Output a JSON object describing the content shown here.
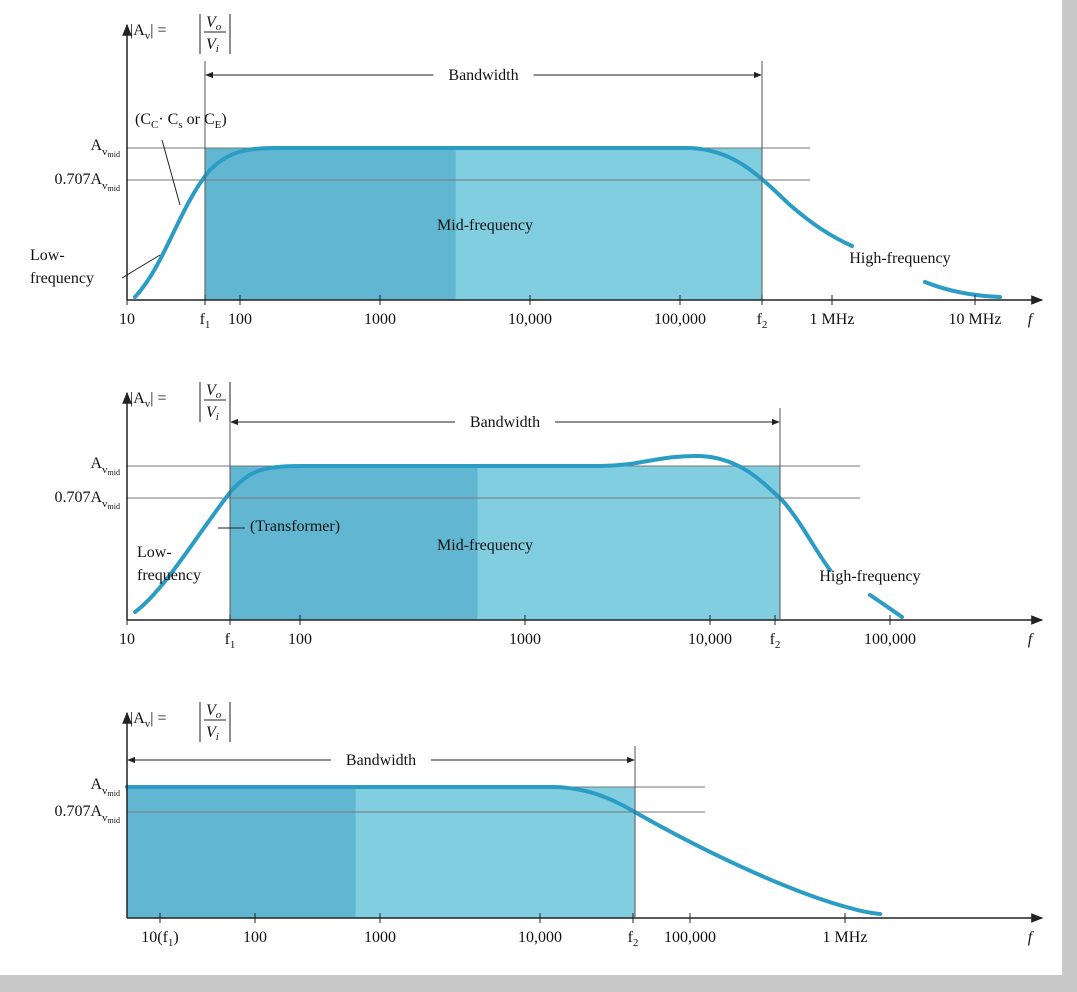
{
  "formula": {
    "lhs": "|A",
    "lhs_sub": "v",
    "eq": "| =",
    "num": "V",
    "num_sub": "o",
    "den": "V",
    "den_sub": "i"
  },
  "mid_gain": {
    "symbol": "A",
    "sub": "v",
    "subsub": "mid"
  },
  "cutoff_coef": "0.707",
  "panels": [
    {
      "bandwidth": "Bandwidth",
      "axis_label": "f",
      "ticks": [
        [
          {
            "t": "10"
          }
        ],
        [
          {
            "t": "f"
          },
          {
            "s": "1"
          }
        ],
        [
          {
            "t": "100"
          }
        ],
        [
          {
            "t": "1000"
          }
        ],
        [
          {
            "t": "10,000"
          }
        ],
        [
          {
            "t": "100,000"
          }
        ],
        [
          {
            "t": "f"
          },
          {
            "s": "2"
          }
        ],
        [
          {
            "t": "1 MHz"
          }
        ],
        [
          {
            "t": "10 MHz"
          }
        ]
      ],
      "notes": [
        [
          {
            "t": "(C"
          },
          {
            "s": "C"
          },
          {
            "t": "· C"
          },
          {
            "s": "s"
          },
          {
            "t": " or C"
          },
          {
            "s": "E"
          },
          {
            "t": ")"
          }
        ],
        [
          {
            "t": "Low-"
          }
        ],
        [
          {
            "t": "frequency"
          }
        ],
        [
          {
            "t": "Mid-frequency"
          }
        ],
        [
          {
            "t": "High-frequency"
          }
        ]
      ]
    },
    {
      "bandwidth": "Bandwidth",
      "axis_label": "f",
      "ticks": [
        [
          {
            "t": "10"
          }
        ],
        [
          {
            "t": "f"
          },
          {
            "s": "1"
          }
        ],
        [
          {
            "t": "100"
          }
        ],
        [
          {
            "t": "1000"
          }
        ],
        [
          {
            "t": "10,000"
          }
        ],
        [
          {
            "t": "f"
          },
          {
            "s": "2"
          }
        ],
        [
          {
            "t": "100,000"
          }
        ]
      ],
      "notes": [
        [
          {
            "t": "(Transformer)"
          }
        ],
        [
          {
            "t": "Low-"
          }
        ],
        [
          {
            "t": "frequency"
          }
        ],
        [
          {
            "t": "Mid-frequency"
          }
        ],
        [
          {
            "t": "High-frequency"
          }
        ]
      ]
    },
    {
      "bandwidth": "Bandwidth",
      "axis_label": "f",
      "ticks": [
        [
          {
            "t": "10(f"
          },
          {
            "s": "1"
          },
          {
            "t": ")"
          }
        ],
        [
          {
            "t": "100"
          }
        ],
        [
          {
            "t": "1000"
          }
        ],
        [
          {
            "t": "10,000"
          }
        ],
        [
          {
            "t": "f"
          },
          {
            "s": "2"
          }
        ],
        [
          {
            "t": "100,000"
          }
        ],
        [
          {
            "t": "1 MHz"
          }
        ]
      ],
      "notes": []
    }
  ]
}
